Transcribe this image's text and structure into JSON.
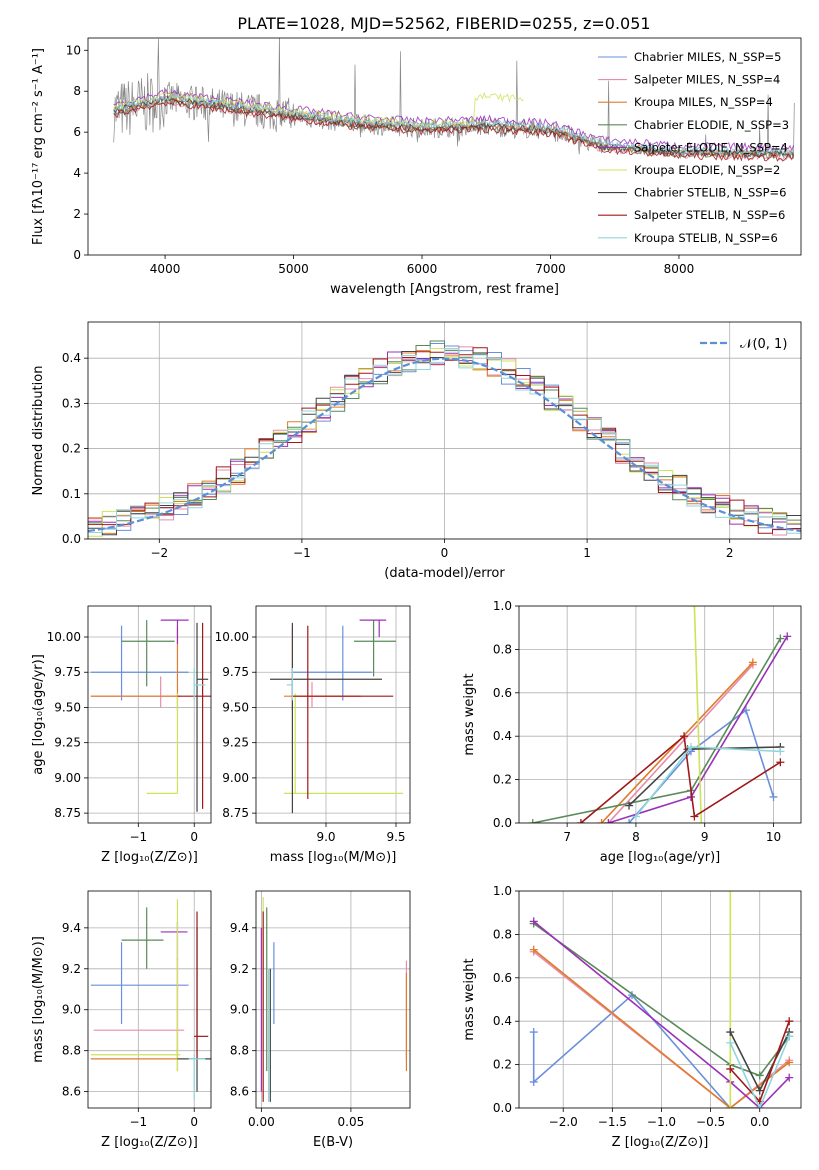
{
  "colors": [
    "#6a8fdc",
    "#e88cab",
    "#e07b2a",
    "#5a8a5a",
    "#9b30b8",
    "#cde35a",
    "#444444",
    "#a01818",
    "#8ed6dc"
  ],
  "suptitle": "PLATE=1028, MJD=52562, FIBERID=0255, z=0.051",
  "chart_data": [
    {
      "type": "line",
      "xlabel": "wavelength [Angstrom, rest frame]",
      "ylabel": "Flux [fλ10⁻¹⁷ erg cm⁻² s⁻¹ A⁻¹]",
      "xlim": [
        3400,
        8950
      ],
      "ylim": [
        0,
        10.6
      ],
      "xticks": [
        "4000",
        "5000",
        "6000",
        "7000",
        "8000"
      ],
      "yticks": [
        "0",
        "2",
        "4",
        "6",
        "8",
        "10"
      ],
      "legend_position": "top-right",
      "legend": [
        "Chabrier MILES, N_SSP=5",
        "Salpeter MILES, N_SSP=4",
        "Kroupa MILES, N_SSP=4",
        "Chabrier ELODIE, N_SSP=3",
        "Salpeter ELODIE, N_SSP=4",
        "Kroupa ELODIE, N_SSP=2",
        "Chabrier STELIB, N_SSP=6",
        "Salpeter STELIB, N_SSP=6",
        "Kroupa STELIB, N_SSP=6"
      ],
      "data_series_color": "#888888",
      "model_trend": {
        "x": [
          3600,
          4000,
          4500,
          5000,
          5500,
          6000,
          6500,
          7000,
          7400,
          8000,
          8900
        ],
        "y": [
          7.0,
          7.6,
          7.2,
          6.8,
          6.4,
          6.2,
          6.3,
          6.1,
          5.3,
          5.0,
          4.9
        ]
      }
    },
    {
      "type": "histogram",
      "xlabel": "(data-model)/error",
      "ylabel": "Normed distribution",
      "xlim": [
        -2.5,
        2.5
      ],
      "ylim": [
        0,
        0.48
      ],
      "xticks": [
        "−2",
        "−1",
        "0",
        "1",
        "2"
      ],
      "yticks": [
        "0.0",
        "0.1",
        "0.2",
        "0.3",
        "0.4"
      ],
      "legend_label": "𝒩(0, 1)",
      "legend_position": "top-right",
      "gaussian_color": "#5b8fd6"
    },
    {
      "type": "errorbar",
      "xlabel": "Z [log₁₀(Z/Z⊙)]",
      "ylabel": "age  [log₁₀(age/yr)]",
      "xlim": [
        -1.9,
        0.3
      ],
      "ylim": [
        8.68,
        10.22
      ],
      "xticks": [
        "−1",
        "0"
      ],
      "yticks": [
        "8.75",
        "9.00",
        "9.25",
        "9.50",
        "9.75",
        "10.00"
      ],
      "points": [
        {
          "x": -1.3,
          "xl": -1.85,
          "xh": -0.1,
          "y": 9.75,
          "yl": 9.55,
          "yh": 10.08
        },
        {
          "x": -0.6,
          "xl": -1.85,
          "xh": -0.3,
          "y": 9.58,
          "yl": 9.5,
          "yh": 9.72
        },
        {
          "x": -0.3,
          "xl": -1.85,
          "xh": -0.25,
          "y": 9.58,
          "yl": 9.48,
          "yh": 10.07
        },
        {
          "x": -0.85,
          "xl": -1.3,
          "xh": -0.35,
          "y": 9.97,
          "yl": 9.65,
          "yh": 10.12
        },
        {
          "x": -0.3,
          "xl": -0.6,
          "xh": -0.1,
          "y": 10.12,
          "yl": 9.95,
          "yh": 10.12
        },
        {
          "x": -0.3,
          "xl": -0.85,
          "xh": -0.3,
          "y": 8.89,
          "yl": 8.89,
          "yh": 9.6
        },
        {
          "x": 0.05,
          "xl": 0.05,
          "xh": 0.25,
          "y": 9.7,
          "yl": 8.76,
          "yh": 10.1
        },
        {
          "x": 0.15,
          "xl": -0.3,
          "xh": 0.3,
          "y": 9.58,
          "yl": 8.78,
          "yh": 10.1
        },
        {
          "x": 0.0,
          "xl": 0.0,
          "xh": 0.2,
          "y": 9.66,
          "yl": 9.55,
          "yh": 9.78
        }
      ]
    },
    {
      "type": "errorbar",
      "xlabel": "mass [log₁₀(M/M⊙)]",
      "ylabel": "",
      "xlim": [
        8.5,
        9.6
      ],
      "ylim": [
        8.68,
        10.22
      ],
      "xticks": [
        "9.0",
        "9.5"
      ],
      "yticks": [
        "8.75",
        "9.00",
        "9.25",
        "9.50",
        "9.75",
        "10.00"
      ],
      "points": [
        {
          "x": 9.12,
          "xl": 8.76,
          "xh": 9.33,
          "y": 9.75,
          "yl": 9.55,
          "yh": 10.08
        },
        {
          "x": 8.9,
          "xl": 8.76,
          "xh": 9.24,
          "y": 9.58,
          "yl": 9.5,
          "yh": 9.68
        },
        {
          "x": 8.76,
          "xl": 8.7,
          "xh": 9.25,
          "y": 9.58,
          "yl": 9.48,
          "yh": 10.07
        },
        {
          "x": 9.34,
          "xl": 9.2,
          "xh": 9.5,
          "y": 9.97,
          "yl": 9.72,
          "yh": 10.12
        },
        {
          "x": 9.38,
          "xl": 9.24,
          "xh": 9.43,
          "y": 10.12,
          "yl": 10.0,
          "yh": 10.12
        },
        {
          "x": 8.78,
          "xl": 8.7,
          "xh": 9.55,
          "y": 8.89,
          "yl": 8.89,
          "yh": 9.6
        },
        {
          "x": 8.76,
          "xl": 8.6,
          "xh": 9.4,
          "y": 9.7,
          "yl": 8.75,
          "yh": 10.1
        },
        {
          "x": 8.87,
          "xl": 8.76,
          "xh": 9.48,
          "y": 9.58,
          "yl": 8.85,
          "yh": 10.08
        },
        {
          "x": 8.76,
          "xl": 8.72,
          "xh": 8.76,
          "y": 9.66,
          "yl": 9.55,
          "yh": 9.78
        }
      ]
    },
    {
      "type": "line",
      "xlabel": "age  [log₁₀(age/yr)]",
      "ylabel": "mass weight",
      "xlim": [
        6.3,
        10.4
      ],
      "ylim": [
        0,
        1.0
      ],
      "xticks": [
        "7",
        "8",
        "9",
        "10"
      ],
      "yticks": [
        "0.0",
        "0.2",
        "0.4",
        "0.6",
        "0.8",
        "1.0"
      ],
      "series": [
        {
          "x": [
            7.9,
            8.8,
            9.6,
            10.0
          ],
          "y": [
            0.0,
            0.33,
            0.52,
            0.12
          ]
        },
        {
          "x": [
            7.6,
            9.7
          ],
          "y": [
            0.0,
            0.73
          ]
        },
        {
          "x": [
            7.5,
            9.7
          ],
          "y": [
            0.0,
            0.74
          ]
        },
        {
          "x": [
            6.5,
            8.8,
            10.1
          ],
          "y": [
            0.0,
            0.15,
            0.85
          ]
        },
        {
          "x": [
            7.6,
            8.8,
            10.2
          ],
          "y": [
            0.0,
            0.12,
            0.86
          ]
        },
        {
          "x": [
            8.95,
            8.85
          ],
          "y": [
            0.0,
            1.0
          ]
        },
        {
          "x": [
            7.9,
            8.75,
            10.1
          ],
          "y": [
            0.08,
            0.34,
            0.35
          ]
        },
        {
          "x": [
            7.2,
            8.7,
            8.85,
            10.1
          ],
          "y": [
            0.0,
            0.4,
            0.03,
            0.28
          ]
        },
        {
          "x": [
            8.0,
            8.8,
            10.1
          ],
          "y": [
            0.03,
            0.35,
            0.33
          ]
        }
      ]
    },
    {
      "type": "errorbar",
      "xlabel": "Z [log₁₀(Z/Z⊙)]",
      "ylabel": "mass [log₁₀(M/M⊙)]",
      "xlim": [
        -1.9,
        0.3
      ],
      "ylim": [
        8.52,
        9.58
      ],
      "xticks": [
        "−1",
        "0"
      ],
      "yticks": [
        "8.6",
        "8.8",
        "9.0",
        "9.2",
        "9.4"
      ],
      "points": [
        {
          "x": -1.3,
          "xl": -1.85,
          "xh": -0.1,
          "y": 9.12,
          "yl": 8.93,
          "yh": 9.33
        },
        {
          "x": -0.3,
          "xl": -1.8,
          "xh": -0.18,
          "y": 8.9,
          "yl": 8.76,
          "yh": 9.24
        },
        {
          "x": -0.3,
          "xl": -1.85,
          "xh": -0.28,
          "y": 8.76,
          "yl": 8.7,
          "yh": 9.25
        },
        {
          "x": -0.85,
          "xl": -1.3,
          "xh": -0.55,
          "y": 9.34,
          "yl": 9.2,
          "yh": 9.5
        },
        {
          "x": -0.3,
          "xl": -0.6,
          "xh": -0.12,
          "y": 9.38,
          "yl": 9.24,
          "yh": 9.43
        },
        {
          "x": -0.3,
          "xl": -1.85,
          "xh": -0.25,
          "y": 8.78,
          "yl": 8.7,
          "yh": 9.54
        },
        {
          "x": 0.05,
          "xl": -0.3,
          "xh": 0.3,
          "y": 8.76,
          "yl": 8.6,
          "yh": 9.4
        },
        {
          "x": 0.05,
          "xl": 0.0,
          "xh": 0.25,
          "y": 8.87,
          "yl": 8.76,
          "yh": 9.48
        },
        {
          "x": 0.0,
          "xl": -0.1,
          "xh": 0.2,
          "y": 8.76,
          "yl": 8.56,
          "yh": 8.78
        }
      ]
    },
    {
      "type": "errorbar",
      "xlabel": "E(B-V)",
      "ylabel": "",
      "xlim": [
        -0.003,
        0.083
      ],
      "ylim": [
        8.52,
        9.58
      ],
      "xticks": [
        "0.00",
        "0.05"
      ],
      "yticks": [
        "8.6",
        "8.8",
        "9.0",
        "9.2",
        "9.4"
      ],
      "points": [
        {
          "x": 0.007,
          "y": 9.12,
          "yl": 8.93,
          "yh": 9.33
        },
        {
          "x": 0.081,
          "y": 9.0,
          "yl": 8.76,
          "yh": 9.24
        },
        {
          "x": 0.081,
          "y": 8.9,
          "yl": 8.7,
          "yh": 9.18
        },
        {
          "x": 0.003,
          "y": 9.1,
          "yl": 8.7,
          "yh": 9.5
        },
        {
          "x": 0.0,
          "y": 9.0,
          "yl": 8.6,
          "yh": 9.4
        },
        {
          "x": 0.001,
          "y": 9.3,
          "yl": 9.0,
          "yh": 9.55
        },
        {
          "x": 0.005,
          "y": 8.9,
          "yl": 8.55,
          "yh": 9.2
        },
        {
          "x": 0.001,
          "y": 8.95,
          "yl": 8.55,
          "yh": 9.48
        },
        {
          "x": 0.004,
          "y": 8.8,
          "yl": 8.55,
          "yh": 9.2
        }
      ]
    },
    {
      "type": "line",
      "xlabel": "Z [log₁₀(Z/Z⊙)]",
      "ylabel": "mass weight",
      "xlim": [
        -2.45,
        0.42
      ],
      "ylim": [
        0,
        1.0
      ],
      "xticks": [
        "−2.0",
        "−1.5",
        "−1.0",
        "−0.5",
        "0.0"
      ],
      "yticks": [
        "0.0",
        "0.2",
        "0.4",
        "0.6",
        "0.8",
        "1.0"
      ],
      "series": [
        {
          "x": [
            -2.3,
            -2.3,
            -1.3,
            -0.3,
            0.0
          ],
          "y": [
            0.35,
            0.12,
            0.52,
            0.0,
            0.0
          ]
        },
        {
          "x": [
            -2.3,
            -0.3,
            0.3
          ],
          "y": [
            0.72,
            0.0,
            0.22
          ]
        },
        {
          "x": [
            -2.3,
            -0.3,
            0.3
          ],
          "y": [
            0.73,
            0.0,
            0.21
          ]
        },
        {
          "x": [
            -2.3,
            -0.3,
            0.0,
            0.3
          ],
          "y": [
            0.85,
            0.2,
            0.15,
            0.33
          ]
        },
        {
          "x": [
            -2.3,
            -0.3,
            0.0,
            0.3
          ],
          "y": [
            0.86,
            0.12,
            0.0,
            0.14
          ]
        },
        {
          "x": [
            -0.3,
            -0.3
          ],
          "y": [
            0.0,
            1.0
          ]
        },
        {
          "x": [
            -0.3,
            0.0,
            0.3
          ],
          "y": [
            0.35,
            0.08,
            0.35
          ]
        },
        {
          "x": [
            -0.3,
            0.0,
            0.3
          ],
          "y": [
            0.18,
            0.03,
            0.4
          ]
        },
        {
          "x": [
            -0.3,
            0.0,
            0.3
          ],
          "y": [
            0.3,
            0.0,
            0.33
          ]
        }
      ]
    }
  ]
}
